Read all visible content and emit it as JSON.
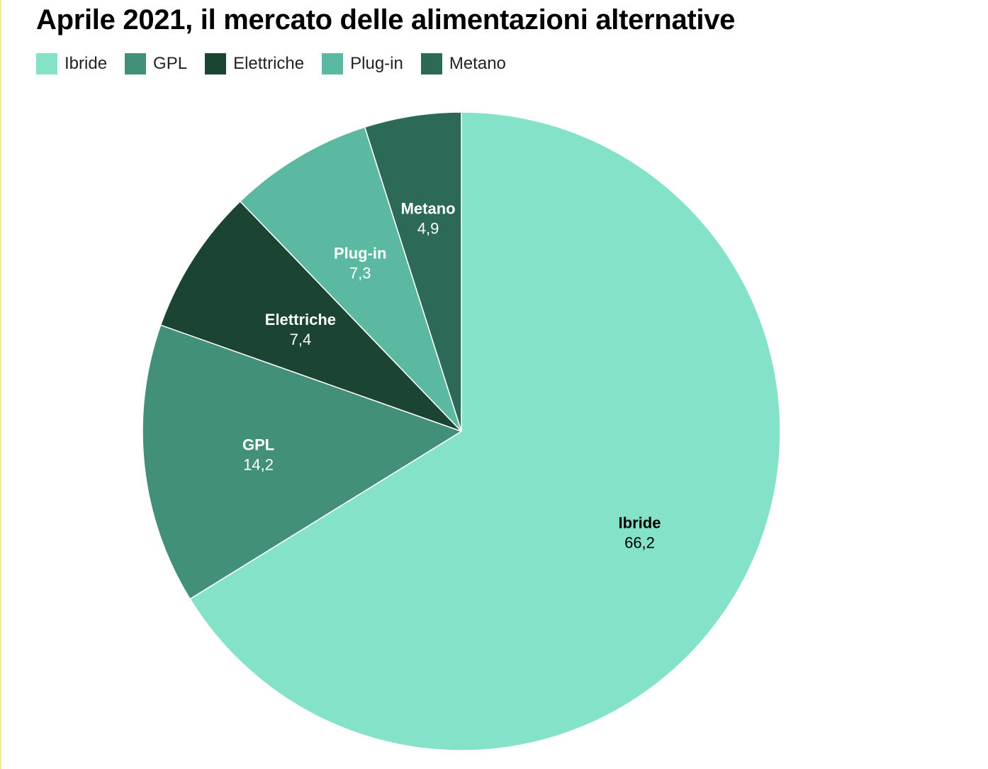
{
  "chart_data": {
    "type": "pie",
    "title": "Aprile 2021, il mercato delle alimentazioni alternative",
    "categories": [
      "Ibride",
      "GPL",
      "Elettriche",
      "Plug-in",
      "Metano"
    ],
    "values": [
      66.2,
      14.2,
      7.4,
      7.3,
      4.9
    ],
    "value_labels": [
      "66,2",
      "14,2",
      "7,4",
      "7,3",
      "4,9"
    ],
    "colors": [
      "#84e2c8",
      "#43907a",
      "#1c4432",
      "#5ab9a0",
      "#2d6957"
    ],
    "label_colors": [
      "#000000",
      "#ffffff",
      "#ffffff",
      "#ffffff",
      "#ffffff"
    ],
    "start": "top",
    "direction": "clockwise",
    "legend_position": "top-left"
  }
}
